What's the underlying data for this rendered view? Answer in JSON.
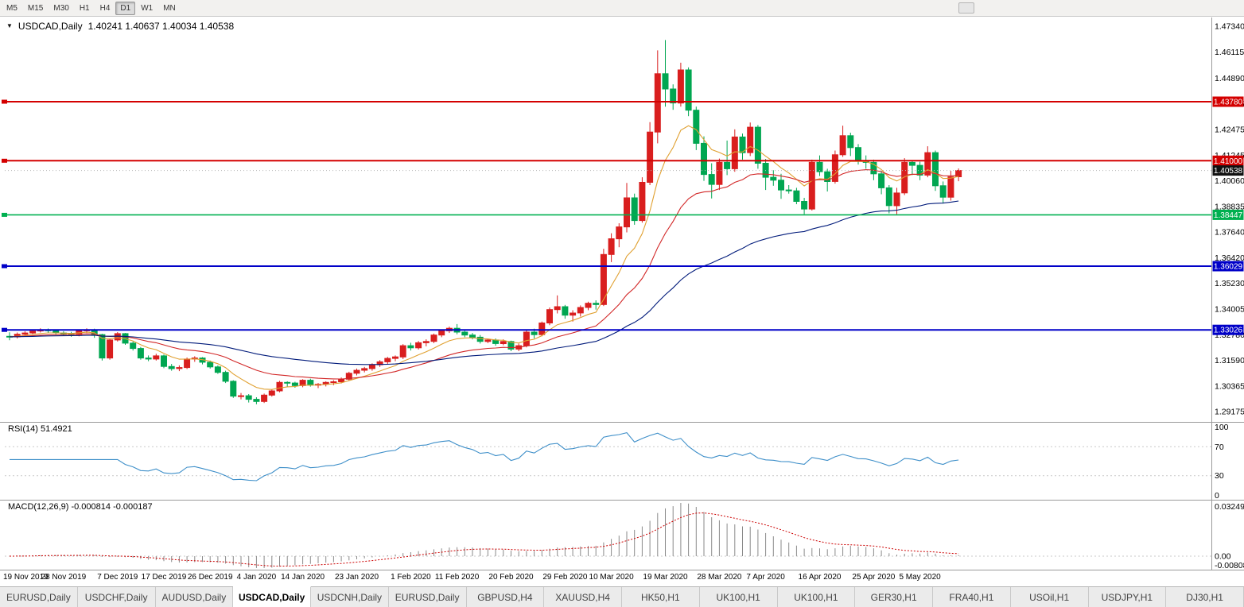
{
  "toolbar": {
    "timeframes": [
      {
        "label": "M5",
        "active": false
      },
      {
        "label": "M15",
        "active": false
      },
      {
        "label": "M30",
        "active": false
      },
      {
        "label": "H1",
        "active": false
      },
      {
        "label": "H4",
        "active": false
      },
      {
        "label": "D1",
        "active": true
      },
      {
        "label": "W1",
        "active": false
      },
      {
        "label": "MN",
        "active": false
      }
    ]
  },
  "chart": {
    "dropdown_icon": "▼",
    "symbol_label": "USDCAD,Daily",
    "ohlc_text": "1.40241 1.40637 1.40034 1.40538"
  },
  "rsi_panel": {
    "label": "RSI(14) 51.4921",
    "value": "51.4921"
  },
  "macd_panel": {
    "label": "MACD(12,26,9) -0.000814 -0.000187"
  },
  "tabs": [
    {
      "label": "EURUSD,Daily",
      "active": false
    },
    {
      "label": "USDCHF,Daily",
      "active": false
    },
    {
      "label": "AUDUSD,Daily",
      "active": false
    },
    {
      "label": "USDCAD,Daily",
      "active": true
    },
    {
      "label": "USDCNH,Daily",
      "active": false
    },
    {
      "label": "EURUSD,Daily",
      "active": false
    },
    {
      "label": "GBPUSD,H4",
      "active": false
    },
    {
      "label": "XAUUSD,H4",
      "active": false
    },
    {
      "label": "HK50,H1",
      "active": false
    },
    {
      "label": "UK100,H1",
      "active": false
    },
    {
      "label": "UK100,H1",
      "active": false
    },
    {
      "label": "GER30,H1",
      "active": false
    },
    {
      "label": "FRA40,H1",
      "active": false
    },
    {
      "label": "USOil,H1",
      "active": false
    },
    {
      "label": "USDJPY,H1",
      "active": false
    },
    {
      "label": "DJ30,H1",
      "active": false
    }
  ],
  "chart_data": {
    "type": "candlestick",
    "title": "USDCAD,Daily",
    "last_bar_ohlc": {
      "open": 1.40241,
      "high": 1.40637,
      "low": 1.40034,
      "close": 1.40538
    },
    "candle_colors": {
      "up": "#d91e1e",
      "down": "#00a651"
    },
    "current_price": {
      "value": 1.40538,
      "label": "1.40538",
      "color": "#111111"
    },
    "y_ticks": [
      1.4734,
      1.46115,
      1.4489,
      1.43665,
      1.42475,
      1.41245,
      1.4006,
      1.38835,
      1.3764,
      1.3642,
      1.3523,
      1.34005,
      1.3278,
      1.3159,
      1.30365,
      1.29175
    ],
    "horizontal_lines": [
      {
        "price": 1.4378,
        "label": "1.43780",
        "color": "#d40000",
        "width": 2
      },
      {
        "price": 1.41,
        "label": "1.41000",
        "color": "#d40000",
        "width": 2
      },
      {
        "price": 1.38447,
        "label": "1.38447",
        "color": "#00b050",
        "width": 1.6
      },
      {
        "price": 1.36029,
        "label": "1.36029",
        "color": "#0000c8",
        "width": 2
      },
      {
        "price": 1.33026,
        "label": "1.33026",
        "color": "#0000c8",
        "width": 2
      }
    ],
    "moving_averages": [
      {
        "method": "ema",
        "period": 8,
        "color": "#e0a030"
      },
      {
        "method": "ema",
        "period": 21,
        "color": "#d22727"
      },
      {
        "method": "ema",
        "period": 55,
        "color": "#001a7a"
      }
    ],
    "indicators": [
      {
        "name": "RSI",
        "period": 14,
        "current": 51.4921,
        "color": "#3e8fc9",
        "levels": [
          70,
          30
        ],
        "axis_labels": [
          "100",
          "70",
          "30",
          "0"
        ]
      },
      {
        "name": "MACD",
        "fast": 12,
        "slow": 26,
        "signal": 9,
        "current_macd": -0.000814,
        "current_signal": -0.000187,
        "axis_labels": [
          "0.032493",
          "0.00",
          "-0.008086"
        ],
        "histogram_color": "#8a8a8a",
        "signal_color": "#cc0000"
      }
    ],
    "x_labels": [
      {
        "label": "19 Nov 2019",
        "bar": 0
      },
      {
        "label": "28 Nov 2019",
        "bar": 7
      },
      {
        "label": "7 Dec 2019",
        "bar": 14
      },
      {
        "label": "17 Dec 2019",
        "bar": 20
      },
      {
        "label": "26 Dec 2019",
        "bar": 26
      },
      {
        "label": "4 Jan 2020",
        "bar": 32
      },
      {
        "label": "14 Jan 2020",
        "bar": 38
      },
      {
        "label": "23 Jan 2020",
        "bar": 45
      },
      {
        "label": "1 Feb 2020",
        "bar": 52
      },
      {
        "label": "11 Feb 2020",
        "bar": 58
      },
      {
        "label": "20 Feb 2020",
        "bar": 65
      },
      {
        "label": "29 Feb 2020",
        "bar": 72
      },
      {
        "label": "10 Mar 2020",
        "bar": 78
      },
      {
        "label": "19 Mar 2020",
        "bar": 85
      },
      {
        "label": "28 Mar 2020",
        "bar": 92
      },
      {
        "label": "7 Apr 2020",
        "bar": 98
      },
      {
        "label": "16 Apr 2020",
        "bar": 105
      },
      {
        "label": "25 Apr 2020",
        "bar": 112
      },
      {
        "label": "5 May 2020",
        "bar": 118
      }
    ],
    "candles": [
      [
        1.3272,
        1.3291,
        1.3254,
        1.327
      ],
      [
        1.327,
        1.329,
        1.3262,
        1.3282
      ],
      [
        1.3282,
        1.3296,
        1.3274,
        1.3288
      ],
      [
        1.3288,
        1.3304,
        1.3281,
        1.3297
      ],
      [
        1.3297,
        1.331,
        1.329,
        1.3302
      ],
      [
        1.3302,
        1.3309,
        1.3288,
        1.3299
      ],
      [
        1.3299,
        1.3305,
        1.328,
        1.3288
      ],
      [
        1.3288,
        1.3296,
        1.3275,
        1.3284
      ],
      [
        1.3284,
        1.3293,
        1.327,
        1.328
      ],
      [
        1.328,
        1.3302,
        1.3272,
        1.3298
      ],
      [
        1.3298,
        1.331,
        1.3288,
        1.3302
      ],
      [
        1.3302,
        1.3308,
        1.3265,
        1.328
      ],
      [
        1.328,
        1.3284,
        1.3158,
        1.317
      ],
      [
        1.317,
        1.326,
        1.3162,
        1.3255
      ],
      [
        1.3255,
        1.3292,
        1.3248,
        1.3285
      ],
      [
        1.3285,
        1.3288,
        1.3232,
        1.324
      ],
      [
        1.324,
        1.3248,
        1.3205,
        1.3215
      ],
      [
        1.3215,
        1.3222,
        1.3162,
        1.317
      ],
      [
        1.317,
        1.3182,
        1.3155,
        1.3165
      ],
      [
        1.3165,
        1.319,
        1.3158,
        1.318
      ],
      [
        1.318,
        1.3186,
        1.3122,
        1.313
      ],
      [
        1.313,
        1.3142,
        1.311,
        1.312
      ],
      [
        1.312,
        1.3135,
        1.3108,
        1.3125
      ],
      [
        1.3125,
        1.3172,
        1.3118,
        1.3165
      ],
      [
        1.3165,
        1.3178,
        1.3152,
        1.317
      ],
      [
        1.317,
        1.3174,
        1.314,
        1.315
      ],
      [
        1.315,
        1.3158,
        1.312,
        1.3128
      ],
      [
        1.3128,
        1.3135,
        1.3095,
        1.3102
      ],
      [
        1.3102,
        1.311,
        1.3052,
        1.306
      ],
      [
        1.306,
        1.3065,
        1.2982,
        1.299
      ],
      [
        1.299,
        1.3005,
        1.2975,
        1.2992
      ],
      [
        1.2992,
        1.3,
        1.296,
        1.2975
      ],
      [
        1.2975,
        1.2985,
        1.2952,
        1.2965
      ],
      [
        1.2965,
        1.3002,
        1.2958,
        1.2995
      ],
      [
        1.2995,
        1.3022,
        1.2988,
        1.3015
      ],
      [
        1.3015,
        1.3062,
        1.3008,
        1.3055
      ],
      [
        1.3055,
        1.306,
        1.3035,
        1.3052
      ],
      [
        1.3052,
        1.3058,
        1.303,
        1.304
      ],
      [
        1.304,
        1.307,
        1.3032,
        1.3065
      ],
      [
        1.3065,
        1.3072,
        1.3035,
        1.3042
      ],
      [
        1.3042,
        1.3052,
        1.3028,
        1.3046
      ],
      [
        1.3046,
        1.306,
        1.3036,
        1.3055
      ],
      [
        1.3055,
        1.3065,
        1.3042,
        1.3058
      ],
      [
        1.3058,
        1.3078,
        1.305,
        1.307
      ],
      [
        1.307,
        1.3105,
        1.3062,
        1.3098
      ],
      [
        1.3098,
        1.312,
        1.3088,
        1.3112
      ],
      [
        1.3112,
        1.3128,
        1.3102,
        1.312
      ],
      [
        1.312,
        1.3145,
        1.311,
        1.3138
      ],
      [
        1.3138,
        1.316,
        1.3128,
        1.3152
      ],
      [
        1.3152,
        1.3175,
        1.3142,
        1.3168
      ],
      [
        1.3168,
        1.3182,
        1.3155,
        1.3175
      ],
      [
        1.3175,
        1.3235,
        1.3165,
        1.3228
      ],
      [
        1.3228,
        1.3242,
        1.3205,
        1.3218
      ],
      [
        1.3218,
        1.325,
        1.321,
        1.3242
      ],
      [
        1.3242,
        1.3258,
        1.3225,
        1.3248
      ],
      [
        1.3248,
        1.3285,
        1.324,
        1.3278
      ],
      [
        1.3278,
        1.3305,
        1.3268,
        1.3298
      ],
      [
        1.3298,
        1.3318,
        1.3288,
        1.331
      ],
      [
        1.331,
        1.333,
        1.3282,
        1.3292
      ],
      [
        1.3292,
        1.33,
        1.3268,
        1.3278
      ],
      [
        1.3278,
        1.3288,
        1.3258,
        1.3268
      ],
      [
        1.3268,
        1.3278,
        1.3238,
        1.3248
      ],
      [
        1.3248,
        1.3262,
        1.324,
        1.3255
      ],
      [
        1.3255,
        1.3262,
        1.3228,
        1.3238
      ],
      [
        1.3238,
        1.3258,
        1.323,
        1.3248
      ],
      [
        1.3248,
        1.3252,
        1.3202,
        1.3212
      ],
      [
        1.3212,
        1.3238,
        1.3202,
        1.3228
      ],
      [
        1.3228,
        1.3302,
        1.322,
        1.3292
      ],
      [
        1.3292,
        1.3308,
        1.3262,
        1.328
      ],
      [
        1.328,
        1.3342,
        1.3272,
        1.3335
      ],
      [
        1.3335,
        1.3408,
        1.3325,
        1.3398
      ],
      [
        1.3398,
        1.3465,
        1.338,
        1.3412
      ],
      [
        1.3412,
        1.342,
        1.3355,
        1.3372
      ],
      [
        1.3372,
        1.3395,
        1.3342,
        1.3382
      ],
      [
        1.3382,
        1.3418,
        1.3365,
        1.3408
      ],
      [
        1.3408,
        1.3435,
        1.3395,
        1.3428
      ],
      [
        1.3428,
        1.3442,
        1.3398,
        1.3422
      ],
      [
        1.3422,
        1.3685,
        1.3415,
        1.3658
      ],
      [
        1.3658,
        1.3758,
        1.3622,
        1.3732
      ],
      [
        1.3732,
        1.3805,
        1.3692,
        1.3788
      ],
      [
        1.3788,
        1.3995,
        1.3762,
        1.3925
      ],
      [
        1.3925,
        1.3945,
        1.3798,
        1.3818
      ],
      [
        1.3818,
        1.4022,
        1.3808,
        1.3998
      ],
      [
        1.3998,
        1.4282,
        1.3985,
        1.4235
      ],
      [
        1.4235,
        1.462,
        1.4182,
        1.451
      ],
      [
        1.451,
        1.4669,
        1.4355,
        1.4438
      ],
      [
        1.4438,
        1.446,
        1.434,
        1.4372
      ],
      [
        1.4372,
        1.4562,
        1.4355,
        1.4528
      ],
      [
        1.4528,
        1.454,
        1.431,
        1.4338
      ],
      [
        1.4338,
        1.4355,
        1.415,
        1.4182
      ],
      [
        1.4182,
        1.4215,
        1.4005,
        1.4035
      ],
      [
        1.4035,
        1.4088,
        1.3922,
        1.3988
      ],
      [
        1.3988,
        1.411,
        1.3962,
        1.4092
      ],
      [
        1.4092,
        1.4195,
        1.4032,
        1.4062
      ],
      [
        1.4062,
        1.4248,
        1.4048,
        1.4212
      ],
      [
        1.4212,
        1.4228,
        1.4105,
        1.4138
      ],
      [
        1.4138,
        1.428,
        1.4122,
        1.4258
      ],
      [
        1.4258,
        1.4268,
        1.4062,
        1.4088
      ],
      [
        1.4088,
        1.4108,
        1.3962,
        1.4022
      ],
      [
        1.4022,
        1.4055,
        1.3982,
        1.4008
      ],
      [
        1.4008,
        1.4038,
        1.392,
        1.3962
      ],
      [
        1.3962,
        1.3985,
        1.3945,
        1.3958
      ],
      [
        1.3958,
        1.3972,
        1.3895,
        1.3908
      ],
      [
        1.3908,
        1.3925,
        1.3848,
        1.3872
      ],
      [
        1.3872,
        1.4105,
        1.3865,
        1.4092
      ],
      [
        1.4092,
        1.4125,
        1.4028,
        1.4048
      ],
      [
        1.4048,
        1.4062,
        1.3955,
        1.4002
      ],
      [
        1.4002,
        1.4148,
        1.3992,
        1.4128
      ],
      [
        1.4128,
        1.4265,
        1.4118,
        1.4218
      ],
      [
        1.4218,
        1.4232,
        1.4122,
        1.4162
      ],
      [
        1.4162,
        1.4178,
        1.4082,
        1.4098
      ],
      [
        1.4098,
        1.4125,
        1.4062,
        1.4092
      ],
      [
        1.4092,
        1.4105,
        1.4008,
        1.4038
      ],
      [
        1.4038,
        1.4052,
        1.3942,
        1.3972
      ],
      [
        1.3972,
        1.3985,
        1.3852,
        1.3888
      ],
      [
        1.3888,
        1.3972,
        1.3848,
        1.3948
      ],
      [
        1.3948,
        1.4112,
        1.3938,
        1.4092
      ],
      [
        1.4092,
        1.4102,
        1.4032,
        1.4078
      ],
      [
        1.4078,
        1.4095,
        1.4008,
        1.4032
      ],
      [
        1.4032,
        1.4168,
        1.4022,
        1.4138
      ],
      [
        1.4138,
        1.4148,
        1.3958,
        1.3982
      ],
      [
        1.3982,
        1.4002,
        1.3898,
        1.3928
      ],
      [
        1.3928,
        1.4052,
        1.3912,
        1.4024
      ],
      [
        1.40241,
        1.40637,
        1.40034,
        1.40538
      ]
    ]
  }
}
